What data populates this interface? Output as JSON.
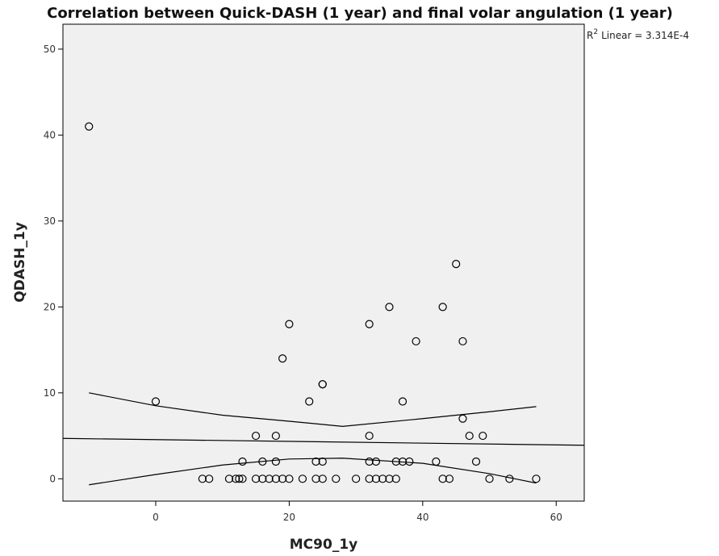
{
  "chart_data": {
    "type": "scatter",
    "title": "Correlation between Quick-DASH (1 year) and final volar angulation (1 year)",
    "x_label": "MC90_1y",
    "y_label": "QDASH_1y",
    "annotation": {
      "base": "R",
      "sup": "2",
      "text": "Linear = 3.314E-4"
    },
    "series": [
      {
        "name": "QDASH_1y",
        "color": "#000000",
        "x": [
          -10,
          0,
          20,
          19,
          25,
          25,
          23,
          32,
          35,
          39,
          45,
          43,
          46,
          37,
          46,
          15,
          18,
          32,
          47,
          49,
          13,
          16,
          18,
          24,
          25,
          32,
          33,
          36,
          37,
          38,
          42,
          48,
          7,
          8,
          11,
          12,
          12.5,
          13,
          15,
          16,
          17,
          18,
          19,
          20,
          22,
          24,
          25,
          27,
          30,
          32,
          33,
          34,
          35,
          36,
          43,
          44,
          50,
          53,
          57
        ],
        "values": [
          41,
          9,
          18,
          14,
          11,
          11,
          9,
          18,
          20,
          16,
          25,
          20,
          16,
          9,
          7,
          5,
          5,
          5,
          5,
          5,
          2,
          2,
          2,
          2,
          2,
          2,
          2,
          2,
          2,
          2,
          2,
          2,
          0,
          0,
          0,
          0,
          0,
          0,
          0,
          0,
          0,
          0,
          0,
          0,
          0,
          0,
          0,
          0,
          0,
          0,
          0,
          0,
          0,
          0,
          0,
          0,
          0,
          0,
          0
        ]
      }
    ],
    "fit_line": {
      "x": [
        -13.9,
        64.2
      ],
      "values": [
        4.7,
        3.9
      ]
    },
    "ci_upper": {
      "x": [
        -10,
        0,
        10,
        20,
        28,
        40,
        50,
        57
      ],
      "values": [
        10,
        8.5,
        7.4,
        6.7,
        6.1,
        7.0,
        7.8,
        8.4
      ]
    },
    "ci_lower": {
      "x": [
        -10,
        0,
        10,
        20,
        28,
        40,
        50,
        57
      ],
      "values": [
        -0.7,
        0.5,
        1.6,
        2.3,
        2.4,
        1.8,
        0.6,
        -0.5
      ]
    },
    "xlim": [
      -13.9,
      64.2
    ],
    "ylim": [
      -2.6,
      52.9
    ],
    "xticks": [
      0,
      20,
      40,
      60
    ],
    "yticks": [
      0,
      10,
      20,
      30,
      40,
      50
    ],
    "background": "#f0f0f0"
  }
}
